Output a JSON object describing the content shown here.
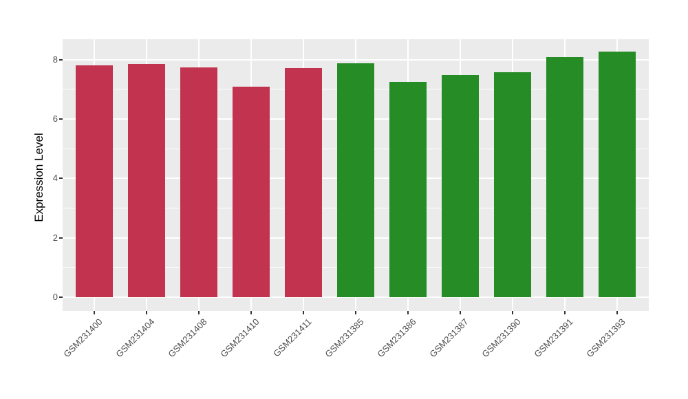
{
  "figure": {
    "kind": "ggplot-style bar chart",
    "background_color": "#FFFFFF",
    "panel_background_color": "#EBEBEB",
    "gridline_color": "#FFFFFF",
    "axis_text_color": "#4D4D4D",
    "axis_title_color": "#000000"
  },
  "chart_data": {
    "type": "bar",
    "title": "",
    "xlabel": "",
    "ylabel": "Expression Level",
    "categories": [
      "GSM231400",
      "GSM231404",
      "GSM231408",
      "GSM231410",
      "GSM231411",
      "GSM231385",
      "GSM231386",
      "GSM231387",
      "GSM231390",
      "GSM231391",
      "GSM231393"
    ],
    "values": [
      7.82,
      7.85,
      7.75,
      7.1,
      7.71,
      7.88,
      7.26,
      7.48,
      7.58,
      8.09,
      8.28
    ],
    "bar_groups": [
      "red",
      "red",
      "red",
      "red",
      "red",
      "green",
      "green",
      "green",
      "green",
      "green",
      "green"
    ],
    "group_colors": {
      "red": "#C2334F",
      "green": "#268C26"
    },
    "yticks": [
      0,
      2,
      4,
      6,
      8
    ],
    "minor_yticks": [
      1,
      3,
      5,
      7
    ],
    "ylim": [
      -0.46,
      8.69
    ],
    "grid": "on",
    "legend": "none",
    "x_label_angle_deg": 45,
    "bar_width_fraction": 0.71
  }
}
